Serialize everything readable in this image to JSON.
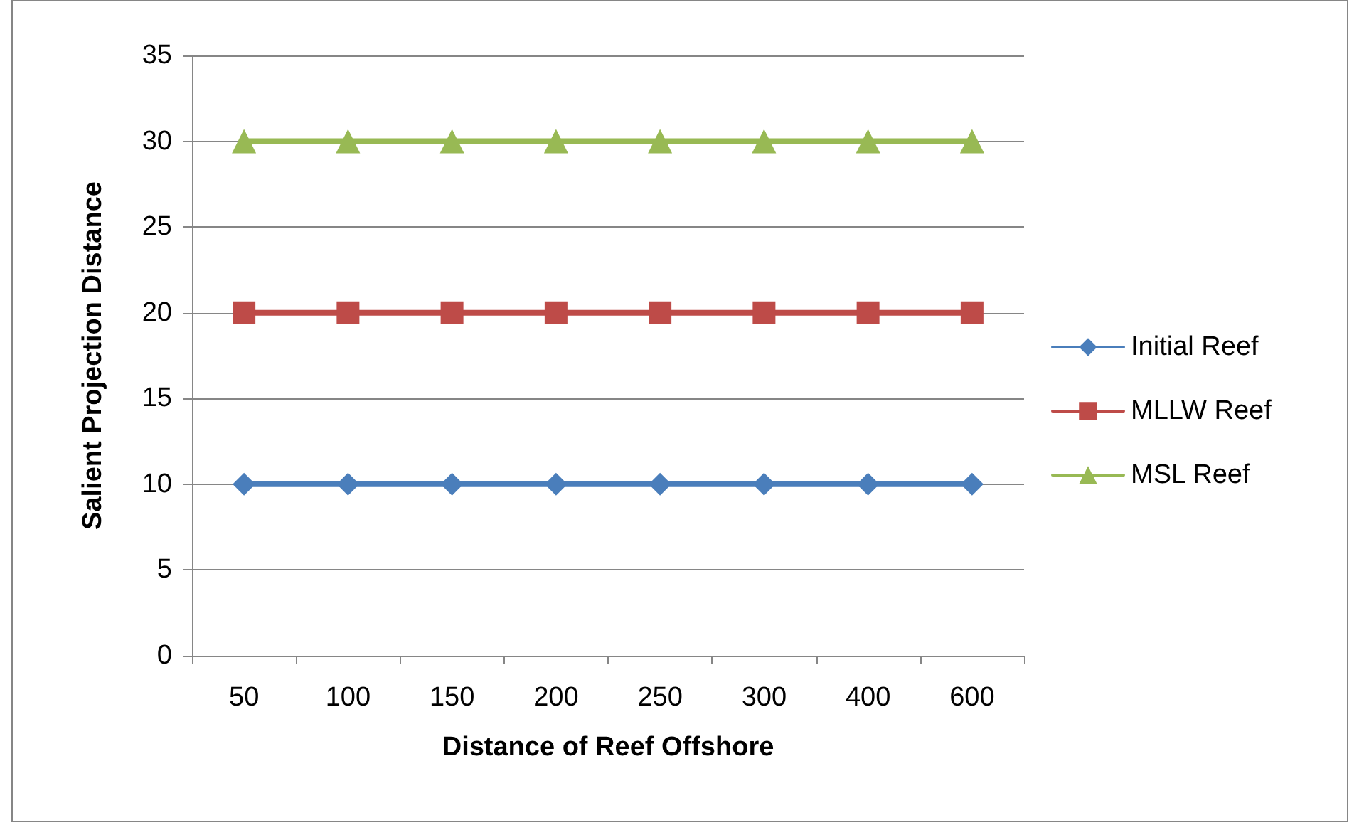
{
  "chart_data": {
    "type": "line",
    "xlabel": "Distance of Reef Offshore",
    "ylabel": "Salient Projection Distance",
    "categories": [
      "50",
      "100",
      "150",
      "200",
      "250",
      "300",
      "400",
      "600"
    ],
    "series": [
      {
        "name": "Initial Reef",
        "color": "#4a7ebb",
        "marker": "diamond",
        "values": [
          10,
          10,
          10,
          10,
          10,
          10,
          10,
          10
        ]
      },
      {
        "name": "MLLW Reef",
        "color": "#be4b48",
        "marker": "square",
        "values": [
          20,
          20,
          20,
          20,
          20,
          20,
          20,
          20
        ]
      },
      {
        "name": "MSL Reef",
        "color": "#98b954",
        "marker": "triangle",
        "values": [
          30,
          30,
          30,
          30,
          30,
          30,
          30,
          30
        ]
      }
    ],
    "ylim": [
      0,
      35
    ],
    "yticks": [
      0,
      5,
      10,
      15,
      20,
      25,
      30,
      35
    ],
    "grid": "y",
    "legend": "right",
    "line_style": "solid"
  }
}
